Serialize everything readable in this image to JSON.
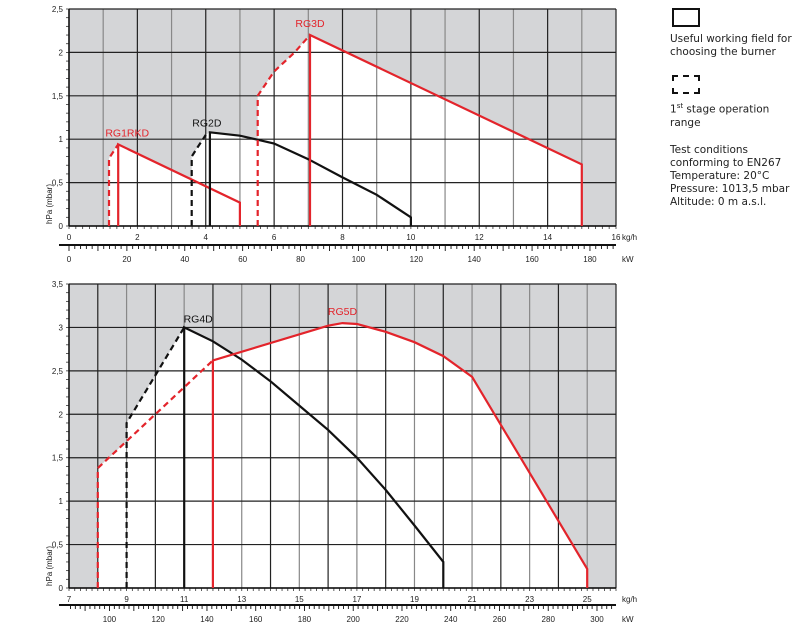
{
  "legend": {
    "working_field": "Useful working field for choosing the burner",
    "stage1_sup_prefix": "1",
    "stage1_sup": "st",
    "stage1_text": " stage operation range",
    "conditions": [
      "Test conditions conforming to EN267",
      "Temperature: 20°C",
      "Pressure: 1013,5 mbar",
      "Altitude: 0 m a.s.l."
    ]
  },
  "colors": {
    "red": "#e3242b",
    "black": "#111111",
    "gray_bg": "#d4d5d7"
  },
  "chart_data": [
    {
      "type": "line",
      "title": "",
      "ylabel": "hPa (mbar)",
      "xlabel": "kg/h",
      "x2label": "kW",
      "xlim": [
        0,
        16
      ],
      "ylim": [
        0,
        2.5
      ],
      "x2lim": [
        0,
        189
      ],
      "xticks": [
        "0",
        "2",
        "4",
        "6",
        "8",
        "10",
        "12",
        "14",
        "16"
      ],
      "xtick_values": [
        0,
        2,
        4,
        6,
        8,
        10,
        12,
        14,
        16
      ],
      "x2ticks": [
        "0",
        "20",
        "40",
        "60",
        "80",
        "100",
        "120",
        "140",
        "160",
        "180"
      ],
      "x2tick_values": [
        0,
        20,
        40,
        60,
        80,
        100,
        120,
        140,
        160,
        180
      ],
      "yticks": [
        "0",
        "0,5",
        "1",
        "1,5",
        "2",
        "2,5"
      ],
      "ytick_values": [
        0,
        0.5,
        1,
        1.5,
        2,
        2.5
      ],
      "grid": true,
      "series": [
        {
          "name": "RG1RKD",
          "color": "#e3242b",
          "stage1": [
            [
              1.17,
              0
            ],
            [
              1.17,
              0.78
            ],
            [
              1.44,
              0.94
            ]
          ],
          "field": [
            [
              1.44,
              0
            ],
            [
              1.44,
              0.94
            ],
            [
              5,
              0.27
            ],
            [
              5,
              0
            ]
          ]
        },
        {
          "name": "RG2D",
          "color": "#111111",
          "stage1": [
            [
              3.59,
              0
            ],
            [
              3.59,
              0.8
            ],
            [
              3.75,
              0.9
            ],
            [
              4.0,
              1.05
            ]
          ],
          "field": [
            [
              4.12,
              0
            ],
            [
              4.12,
              1.08
            ],
            [
              5,
              1.04
            ],
            [
              6,
              0.95
            ],
            [
              7,
              0.77
            ],
            [
              8,
              0.56
            ],
            [
              9,
              0.36
            ],
            [
              10,
              0.1
            ],
            [
              10,
              0
            ]
          ]
        },
        {
          "name": "RG3D",
          "color": "#e3242b",
          "stage1": [
            [
              5.52,
              0
            ],
            [
              5.52,
              1.5
            ],
            [
              6.0,
              1.78
            ],
            [
              6.6,
              2.0
            ],
            [
              7.05,
              2.2
            ]
          ],
          "field": [
            [
              7.05,
              0
            ],
            [
              7.05,
              2.2
            ],
            [
              15,
              0.71
            ],
            [
              15,
              0
            ]
          ]
        }
      ]
    },
    {
      "type": "line",
      "title": "",
      "ylabel": "hPa (mbar)",
      "xlabel": "kg/h",
      "x2label": "kW",
      "xlim": [
        7,
        26
      ],
      "ylim": [
        0,
        3.5
      ],
      "x2lim": [
        83.4,
        307.8
      ],
      "xticks": [
        "7",
        "9",
        "11",
        "13",
        "15",
        "17",
        "19",
        "21",
        "23",
        "25"
      ],
      "xtick_values": [
        7,
        9,
        11,
        13,
        15,
        17,
        19,
        21,
        23,
        25
      ],
      "x2ticks": [
        "100",
        "120",
        "140",
        "160",
        "180",
        "200",
        "220",
        "240",
        "260",
        "280",
        "300"
      ],
      "x2tick_values": [
        100,
        120,
        140,
        160,
        180,
        200,
        220,
        240,
        260,
        280,
        300
      ],
      "yticks": [
        "0",
        "0,5",
        "1",
        "1,5",
        "2",
        "2,5",
        "3",
        "3,5"
      ],
      "ytick_values": [
        0,
        0.5,
        1,
        1.5,
        2,
        2.5,
        3,
        3.5
      ],
      "grid": true,
      "series": [
        {
          "name": "RG4D",
          "color": "#111111",
          "stage1": [
            [
              9,
              0
            ],
            [
              9,
              1.9
            ],
            [
              11,
              3.0
            ]
          ],
          "field": [
            [
              11,
              0
            ],
            [
              11,
              3
            ],
            [
              12,
              2.84
            ],
            [
              13,
              2.63
            ],
            [
              14,
              2.38
            ],
            [
              15,
              2.1
            ],
            [
              16,
              1.82
            ],
            [
              17,
              1.5
            ],
            [
              18,
              1.13
            ],
            [
              19,
              0.72
            ],
            [
              20,
              0.3
            ],
            [
              20,
              0
            ]
          ]
        },
        {
          "name": "RG5D",
          "color": "#e3242b",
          "stage1": [
            [
              8,
              0
            ],
            [
              8,
              1.38
            ],
            [
              12,
              2.62
            ]
          ],
          "field": [
            [
              12,
              0
            ],
            [
              12,
              2.62
            ],
            [
              16,
              3.02
            ],
            [
              16.5,
              3.05
            ],
            [
              17,
              3.04
            ],
            [
              18,
              2.95
            ],
            [
              19,
              2.83
            ],
            [
              20,
              2.67
            ],
            [
              21,
              2.43
            ],
            [
              25,
              0.22
            ],
            [
              25,
              0
            ]
          ]
        }
      ]
    }
  ]
}
